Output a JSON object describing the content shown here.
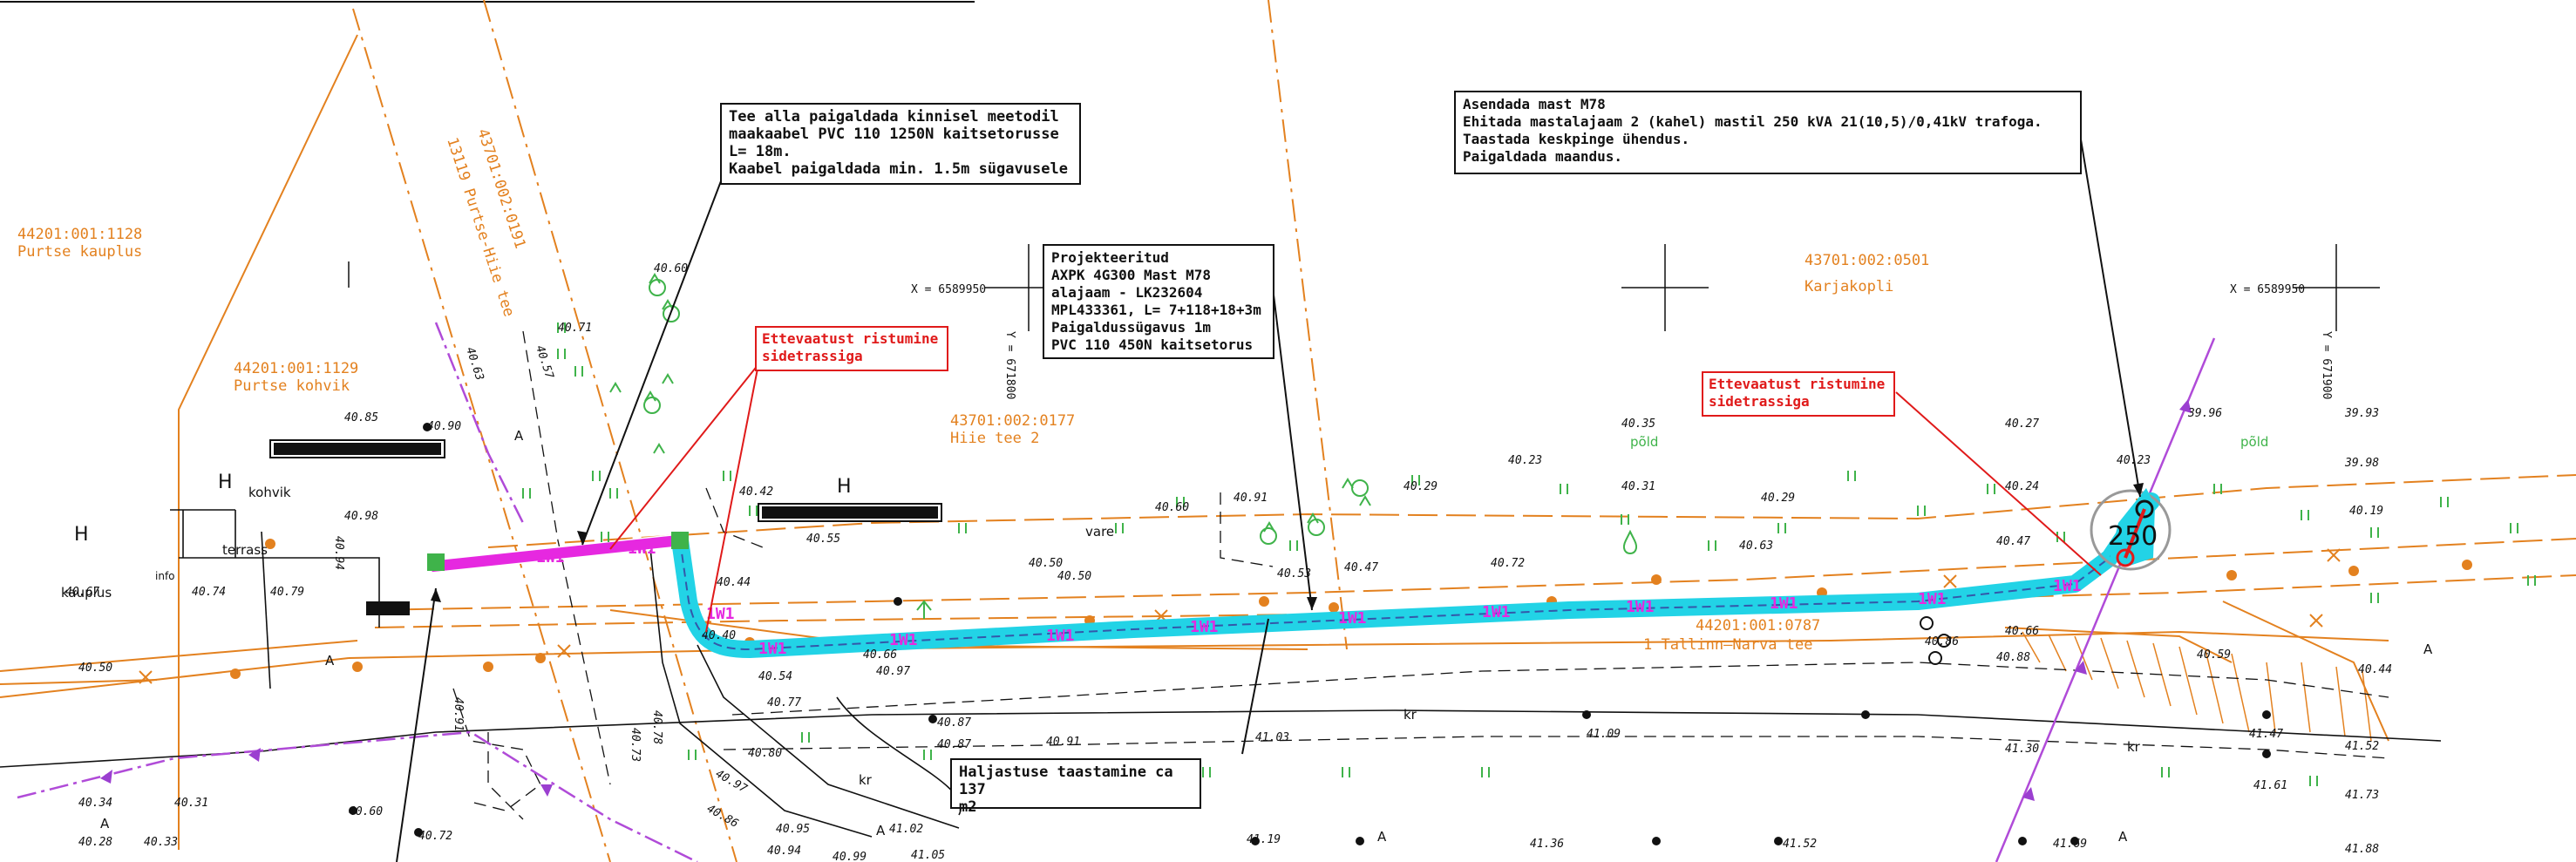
{
  "colors": {
    "orange": "#e3811f",
    "cable": "#22d3e6",
    "magenta": "#e628e0",
    "green": "#3fb34a",
    "red": "#e01a1a",
    "purple": "#9b3fd0",
    "black": "#111111"
  },
  "parcels": [
    {
      "id": "44201:001:1128",
      "name": "Purtse kauplus"
    },
    {
      "id": "44201:001:1129",
      "name": "Purtse kohvik"
    },
    {
      "id": "43701:002:0191",
      "name": "13119 Purtse-Hiie tee"
    },
    {
      "id": "43701:002:0177",
      "name": "Hiie tee 2"
    },
    {
      "id": "43701:002:0501",
      "name": "Karjakopli"
    },
    {
      "id": "44201:001:0787",
      "name": "1 Tallinn–Narva tee"
    }
  ],
  "callouts": {
    "road_crossing": [
      "Tee alla paigaldada kinnisel meetodil",
      "maakaabel PVC 110 1250N kaitsetorusse",
      "L= 18m.",
      "Kaabel paigaldada min. 1.5m sügavusele"
    ],
    "project": [
      "Projekteeritud",
      "AXPK 4G300 Mast M78",
      "alajaam - LK232604",
      "MPL433361, L= 7+118+18+3m",
      "Paigaldussügavus 1m",
      "PVC 110 450N kaitsetorus"
    ],
    "mast": [
      "Asendada mast M78",
      "Ehitada mastalajaam 2 (kahel) mastil 250 kVA 21(10,5)/0,41kV trafoga.",
      "Taastada keskpinge ühendus.",
      "Paigaldada maandus."
    ],
    "greenery": [
      "Haljastuse taastamine ca 137",
      "m2"
    ],
    "warning_left": [
      "Ettevaatust ristumine",
      "sidetrassiga"
    ],
    "warning_right": [
      "Ettevaatust ristumine",
      "sidetrassiga"
    ]
  },
  "coords": {
    "x1": "X = 6589950",
    "y1": "Y = 671800",
    "x2": "X = 6589950",
    "y2": "Y = 671900"
  },
  "map_labels": {
    "kohvik": "kohvik",
    "kauplus": "kauplus",
    "terrass": "terrass",
    "info": "info",
    "vare": "vare",
    "substation": "250",
    "cable_mark": "1W1",
    "kr": "kr",
    "pold": "põld",
    "A": "A",
    "H": "H"
  },
  "elevations": [
    "40.60",
    "40.71",
    "40.57",
    "40.63",
    "40.85",
    "40.90",
    "40.98",
    "40.94",
    "40.74",
    "40.79",
    "40.67",
    "40.42",
    "40.55",
    "40.44",
    "40.40",
    "40.50",
    "40.60",
    "40.50",
    "40.53",
    "40.47",
    "40.29",
    "40.23",
    "40.31",
    "40.29",
    "40.35",
    "40.27",
    "40.24",
    "40.47",
    "40.63",
    "40.72",
    "40.23",
    "39.96",
    "39.93",
    "39.98",
    "40.19",
    "40.66",
    "40.86",
    "40.88",
    "40.59",
    "40.44",
    "41.47",
    "41.52",
    "41.61",
    "41.73",
    "40.54",
    "40.66",
    "40.77",
    "40.87",
    "40.87",
    "40.91",
    "41.03",
    "41.09",
    "41.30",
    "40.80",
    "40.97",
    "40.91",
    "40.95",
    "41.02",
    "40.94",
    "40.99",
    "41.05",
    "40.72",
    "40.60",
    "40.34",
    "40.31",
    "40.28",
    "40.33",
    "41.19",
    "41.36",
    "41.52",
    "41.69",
    "41.88",
    "40.50",
    "40.86",
    "40.97",
    "40.73",
    "40.78",
    "40.91"
  ]
}
